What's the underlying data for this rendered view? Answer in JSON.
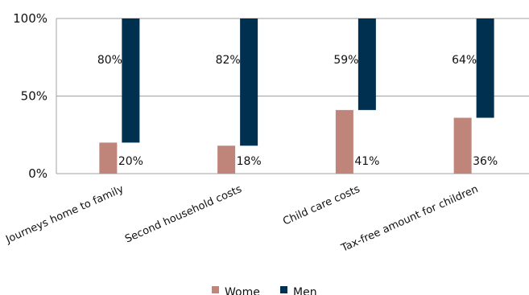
{
  "chart_data": {
    "type": "bar",
    "stacked": true,
    "categories": [
      "Journeys home to family",
      "Second household costs",
      "Child care costs",
      "Tax-free amount for children"
    ],
    "series": [
      {
        "name": "Wome",
        "color": "#c0857a",
        "values": [
          20,
          18,
          41,
          36
        ],
        "labels": [
          "20%",
          "18%",
          "41%",
          "36%"
        ]
      },
      {
        "name": "Men",
        "color": "#003050",
        "values": [
          80,
          82,
          59,
          64
        ],
        "labels": [
          "80%",
          "82%",
          "59%",
          "64%"
        ]
      }
    ],
    "yticks": [
      "0%",
      "50%",
      "100%"
    ],
    "ylim": [
      0,
      100
    ],
    "grid": true,
    "legend": "bottom"
  }
}
